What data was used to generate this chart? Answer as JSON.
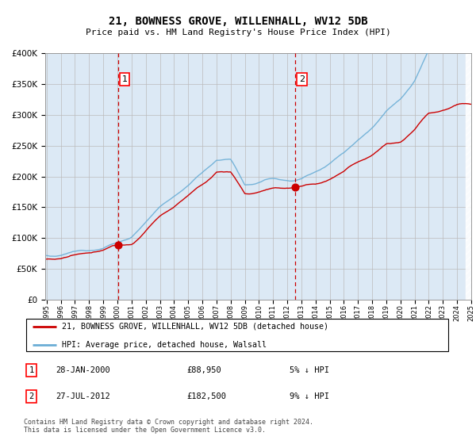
{
  "title": "21, BOWNESS GROVE, WILLENHALL, WV12 5DB",
  "subtitle": "Price paid vs. HM Land Registry's House Price Index (HPI)",
  "legend_line1": "21, BOWNESS GROVE, WILLENHALL, WV12 5DB (detached house)",
  "legend_line2": "HPI: Average price, detached house, Walsall",
  "annotation1_date": "28-JAN-2000",
  "annotation1_price": "£88,950",
  "annotation1_hpi": "5% ↓ HPI",
  "annotation2_date": "27-JUL-2012",
  "annotation2_price": "£182,500",
  "annotation2_hpi": "9% ↓ HPI",
  "footer": "Contains HM Land Registry data © Crown copyright and database right 2024.\nThis data is licensed under the Open Government Licence v3.0.",
  "hpi_color": "#6baed6",
  "price_color": "#cc0000",
  "bg_color": "#dce9f5",
  "grid_color": "#bbbbbb",
  "purchase1_year": 2000.07,
  "purchase1_value": 88950,
  "purchase2_year": 2012.57,
  "purchase2_value": 182500,
  "xmin": 1995,
  "xmax": 2025,
  "ymin": 0,
  "ymax": 400000
}
